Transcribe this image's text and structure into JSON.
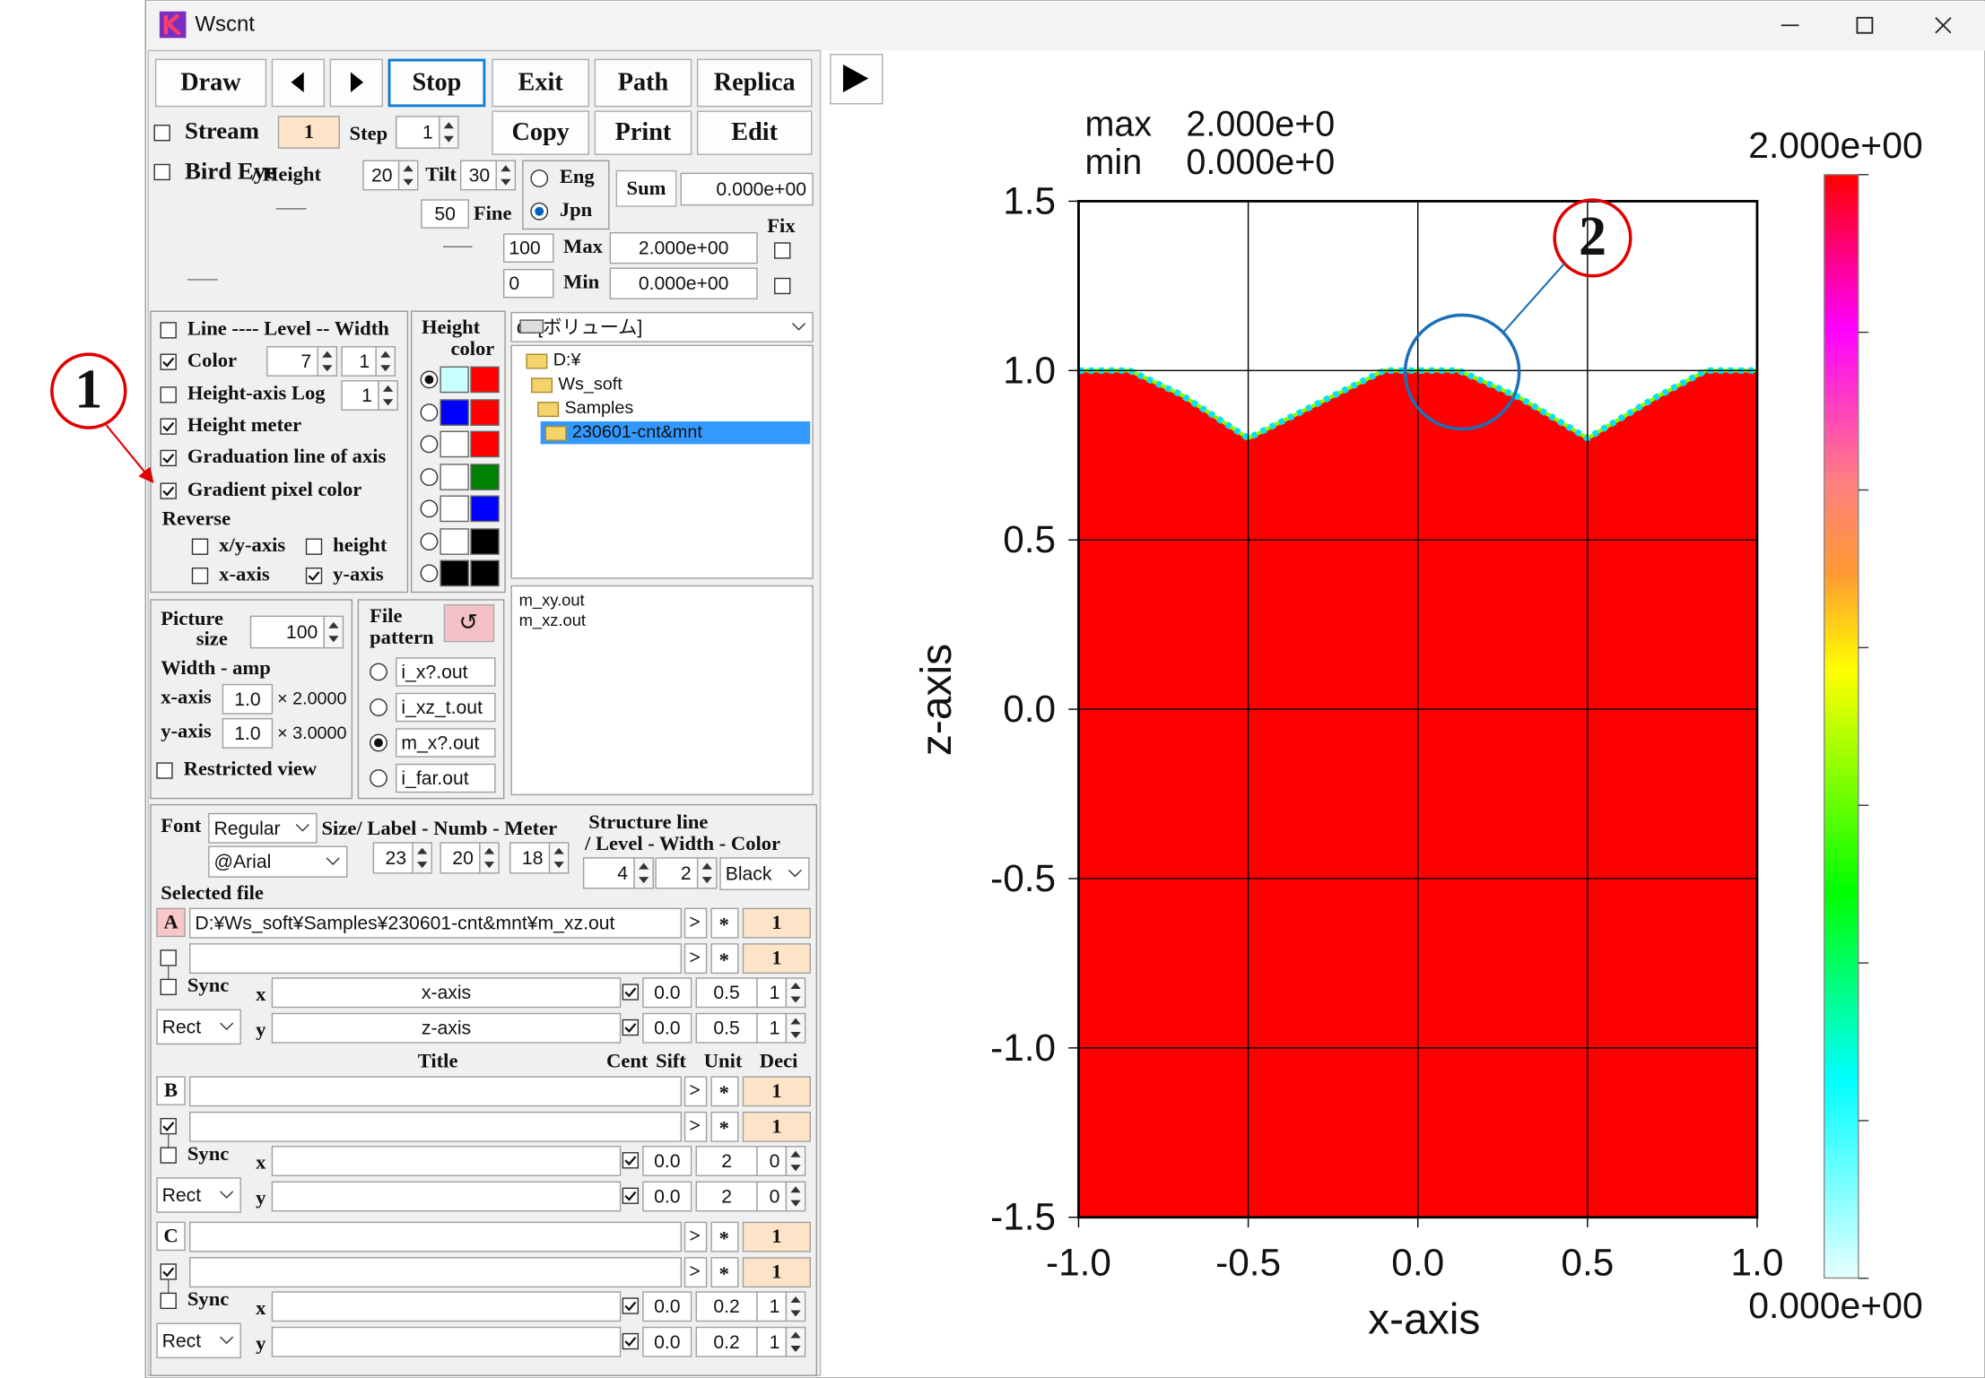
{
  "window": {
    "title": "Wscnt"
  },
  "toolbar": {
    "draw": "Draw",
    "stop": "Stop",
    "exit": "Exit",
    "path": "Path",
    "replica": "Replica"
  },
  "stream": {
    "label": "Stream",
    "checked": false,
    "value": "1",
    "step_label": "Step",
    "step": "1"
  },
  "actions": {
    "copy": "Copy",
    "print": "Print",
    "edit": "Edit"
  },
  "bird_eye": {
    "label": "Bird Eye",
    "checked": false,
    "height_label": "/ Height",
    "height": "20",
    "tilt_label": "Tilt",
    "tilt": "30"
  },
  "language": [
    {
      "label": "Eng",
      "selected": false
    },
    {
      "label": "Jpn",
      "selected": true
    }
  ],
  "sum": {
    "label": "Sum",
    "value": "0.000e+00"
  },
  "fine": {
    "value": "50",
    "label": "Fine"
  },
  "range": {
    "fix_label": "Fix",
    "max": {
      "slider": "100",
      "label": "Max",
      "value": "2.000e+00",
      "fixed": false
    },
    "min": {
      "slider": "0",
      "label": "Min",
      "value": "0.000e+00",
      "fixed": false
    }
  },
  "options": [
    {
      "label": "Line ---- Level -- Width",
      "checked": false
    },
    {
      "label": "Color",
      "checked": true
    },
    {
      "label": "Height-axis Log",
      "checked": false
    },
    {
      "label": "Height meter",
      "checked": true
    },
    {
      "label": "Graduation line of axis",
      "checked": true
    },
    {
      "label": "Gradient pixel color",
      "checked": true
    }
  ],
  "color_level": "7",
  "color_width": "1",
  "log_value": "1",
  "reverse": {
    "label": "Reverse",
    "options": [
      {
        "label": "x/y-axis",
        "checked": false
      },
      {
        "label": "height",
        "checked": false
      },
      {
        "label": "x-axis",
        "checked": false
      },
      {
        "label": "y-axis",
        "checked": true
      }
    ]
  },
  "height_color": {
    "title": [
      "Height",
      "color"
    ],
    "rows": [
      {
        "selected": true,
        "low": "#c8ffff",
        "high": "#ff0000"
      },
      {
        "selected": false,
        "low": "#0000ff",
        "high": "#ff0000"
      },
      {
        "selected": false,
        "low": "#ffffff",
        "high": "#ff0000"
      },
      {
        "selected": false,
        "low": "#ffffff",
        "high": "#008000"
      },
      {
        "selected": false,
        "low": "#ffffff",
        "high": "#0000ff"
      },
      {
        "selected": false,
        "low": "#ffffff",
        "high": "#000000"
      },
      {
        "selected": false,
        "low": "#000000",
        "high": "#000000"
      }
    ]
  },
  "drive": "d: [ボリューム]",
  "tree": {
    "items": [
      "D:¥",
      "Ws_soft",
      "Samples",
      "230601-cnt&mnt"
    ],
    "selected": 3
  },
  "files": [
    "m_xy.out",
    "m_xz.out"
  ],
  "picture": {
    "title": [
      "Picture",
      "size"
    ],
    "size": "100",
    "width_amp": "Width - amp",
    "x_label": "x-axis",
    "x_amp": "1.0",
    "x_factor": "× 2.0000",
    "y_label": "y-axis",
    "y_amp": "1.0",
    "y_factor": "× 3.0000",
    "restricted": {
      "label": "Restricted view",
      "checked": false
    }
  },
  "file_pattern": {
    "title": [
      "File",
      "pattern"
    ],
    "reload": "↺",
    "options": [
      {
        "label": "i_x?.out",
        "selected": false
      },
      {
        "label": "i_xz_t.out",
        "selected": false
      },
      {
        "label": "m_x?.out",
        "selected": true
      },
      {
        "label": "i_far.out",
        "selected": false
      }
    ]
  },
  "font": {
    "label": "Font",
    "style": "Regular",
    "face": "@Arial",
    "size_label": "Size/ Label - Numb - Meter",
    "sizes": [
      "23",
      "20",
      "18"
    ]
  },
  "structure": {
    "title": [
      "Structure line",
      "/ Level - Width - Color"
    ],
    "level": "4",
    "width": "2",
    "color": "Black"
  },
  "selected_file": "Selected file",
  "columns": {
    "title": "Title",
    "cent": "Cent",
    "sift": "Sift",
    "unit": "Unit",
    "deci": "Deci"
  },
  "browse": ">",
  "mark": "*",
  "groups": [
    {
      "id": "A",
      "file": "D:¥Ws_soft¥Samples¥230601-cnt&mnt¥m_xz.out",
      "count": "1",
      "second": {
        "checked": false,
        "count": "1"
      },
      "sync": {
        "label": "Sync",
        "checked": false
      },
      "mode": "Rect",
      "axes": [
        {
          "axis": "x",
          "title": "x-axis",
          "checked": true,
          "cent": "0.0",
          "unit": "0.5",
          "deci": "1"
        },
        {
          "axis": "y",
          "title": "z-axis",
          "checked": true,
          "cent": "0.0",
          "unit": "0.5",
          "deci": "1"
        }
      ]
    },
    {
      "id": "B",
      "count": "1",
      "second": {
        "checked": true,
        "count": "1"
      },
      "sync": {
        "label": "Sync",
        "checked": false
      },
      "mode": "Rect",
      "axes": [
        {
          "axis": "x",
          "checked": true,
          "cent": "0.0",
          "unit": "2",
          "deci": "0"
        },
        {
          "axis": "y",
          "checked": true,
          "cent": "0.0",
          "unit": "2",
          "deci": "0"
        }
      ]
    },
    {
      "id": "C",
      "count": "1",
      "second": {
        "checked": true,
        "count": "1"
      },
      "sync": {
        "label": "Sync",
        "checked": false
      },
      "mode": "Rect",
      "axes": [
        {
          "axis": "x",
          "checked": true,
          "cent": "0.0",
          "unit": "0.2",
          "deci": "1"
        },
        {
          "axis": "y",
          "checked": true,
          "cent": "0.0",
          "unit": "0.2",
          "deci": "1"
        }
      ]
    }
  ],
  "plot": {
    "max_label": "max",
    "max": "2.000e+0",
    "min_label": "min",
    "min": "0.000e+0",
    "colorbar_max": "2.000e+00",
    "colorbar_min": "0.000e+00",
    "yticks": [
      "1.5",
      "1.0",
      "0.5",
      "0.0",
      "-0.5",
      "-1.0",
      "-1.5"
    ],
    "xticks": [
      "-1.0",
      "-0.5",
      "0.0",
      "0.5",
      "1.0"
    ],
    "xlabel": "x-axis",
    "ylabel": "z-axis"
  },
  "annotations": [
    "1",
    "2"
  ]
}
